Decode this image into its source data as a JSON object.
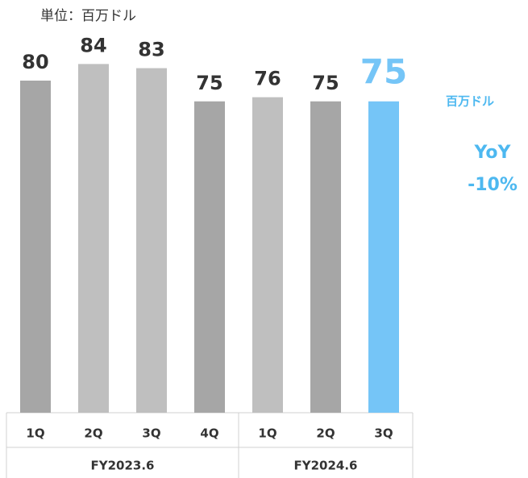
{
  "chart_data": {
    "type": "bar",
    "subtitle": "単位：百万ドル",
    "categories": [
      "1Q",
      "2Q",
      "3Q",
      "4Q",
      "1Q",
      "2Q",
      "3Q"
    ],
    "groups": [
      {
        "name": "FY2023.6",
        "count": 4
      },
      {
        "name": "FY2024.6",
        "count": 3
      }
    ],
    "values": [
      80,
      84,
      83,
      75,
      76,
      75,
      75
    ],
    "colors": [
      "#a6a6a6",
      "#bfbfbf",
      "#bfbfbf",
      "#a6a6a6",
      "#bfbfbf",
      "#a6a6a6",
      "#75c5f7"
    ],
    "ylim": [
      0,
      100
    ],
    "annotations": [
      "百万ドル",
      "YoY",
      "-10%"
    ]
  }
}
